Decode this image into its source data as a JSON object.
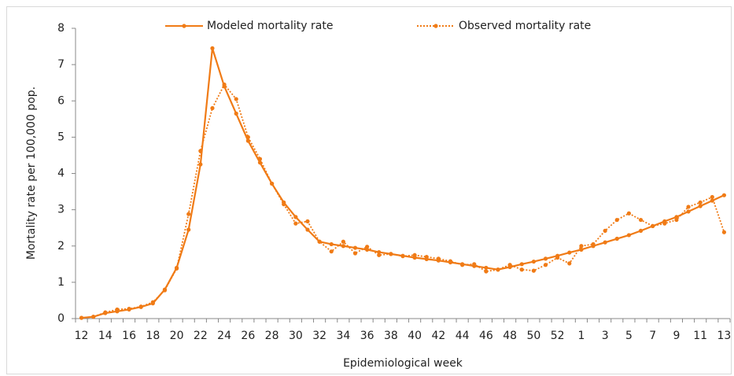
{
  "chart_data": {
    "type": "line",
    "xlabel": "Epidemiological week",
    "ylabel": "Mortality rate per 100,000 pop.",
    "categories": [
      "12",
      null,
      "14",
      null,
      "16",
      null,
      "18",
      null,
      "20",
      null,
      "22",
      null,
      "24",
      null,
      "26",
      null,
      "28",
      null,
      "30",
      null,
      "32",
      null,
      "34",
      null,
      "36",
      null,
      "38",
      null,
      "40",
      null,
      "42",
      null,
      "44",
      null,
      "46",
      null,
      "48",
      null,
      "50",
      null,
      "52",
      null,
      "1",
      null,
      "3",
      null,
      "5",
      null,
      "7",
      null,
      "9",
      null,
      "11",
      null,
      "13"
    ],
    "series": [
      {
        "name": "Modeled mortality rate",
        "color": "#f07b16",
        "dash": "solid",
        "values": [
          0.02,
          0.05,
          0.15,
          0.2,
          0.25,
          0.32,
          0.42,
          0.8,
          1.4,
          2.45,
          4.25,
          7.45,
          6.4,
          5.65,
          4.9,
          4.3,
          3.72,
          3.2,
          2.8,
          2.45,
          2.12,
          2.05,
          2.0,
          1.95,
          1.9,
          1.83,
          1.78,
          1.73,
          1.68,
          1.64,
          1.6,
          1.55,
          1.5,
          1.45,
          1.4,
          1.35,
          1.42,
          1.5,
          1.57,
          1.65,
          1.73,
          1.82,
          1.9,
          2.0,
          2.1,
          2.2,
          2.3,
          2.42,
          2.55,
          2.68,
          2.8,
          2.95,
          3.1,
          3.25,
          3.4
        ]
      },
      {
        "name": "Observed mortality rate",
        "color": "#f07b16",
        "dash": "dotted",
        "values": [
          0.02,
          0.05,
          0.17,
          0.25,
          0.27,
          0.33,
          0.45,
          0.78,
          1.38,
          2.88,
          4.62,
          5.8,
          6.45,
          6.05,
          5.0,
          4.4,
          3.72,
          3.15,
          2.62,
          2.68,
          2.12,
          1.85,
          2.12,
          1.8,
          1.98,
          1.75,
          1.78,
          1.72,
          1.75,
          1.7,
          1.65,
          1.58,
          1.48,
          1.5,
          1.3,
          1.35,
          1.48,
          1.35,
          1.32,
          1.48,
          1.68,
          1.52,
          2.0,
          2.05,
          2.42,
          2.72,
          2.9,
          2.72,
          2.55,
          2.62,
          2.72,
          3.08,
          3.2,
          3.35,
          2.38
        ]
      }
    ],
    "ylim": [
      0,
      8
    ],
    "yticks": [
      0,
      1,
      2,
      3,
      4,
      5,
      6,
      7,
      8
    ],
    "legend": "top"
  }
}
